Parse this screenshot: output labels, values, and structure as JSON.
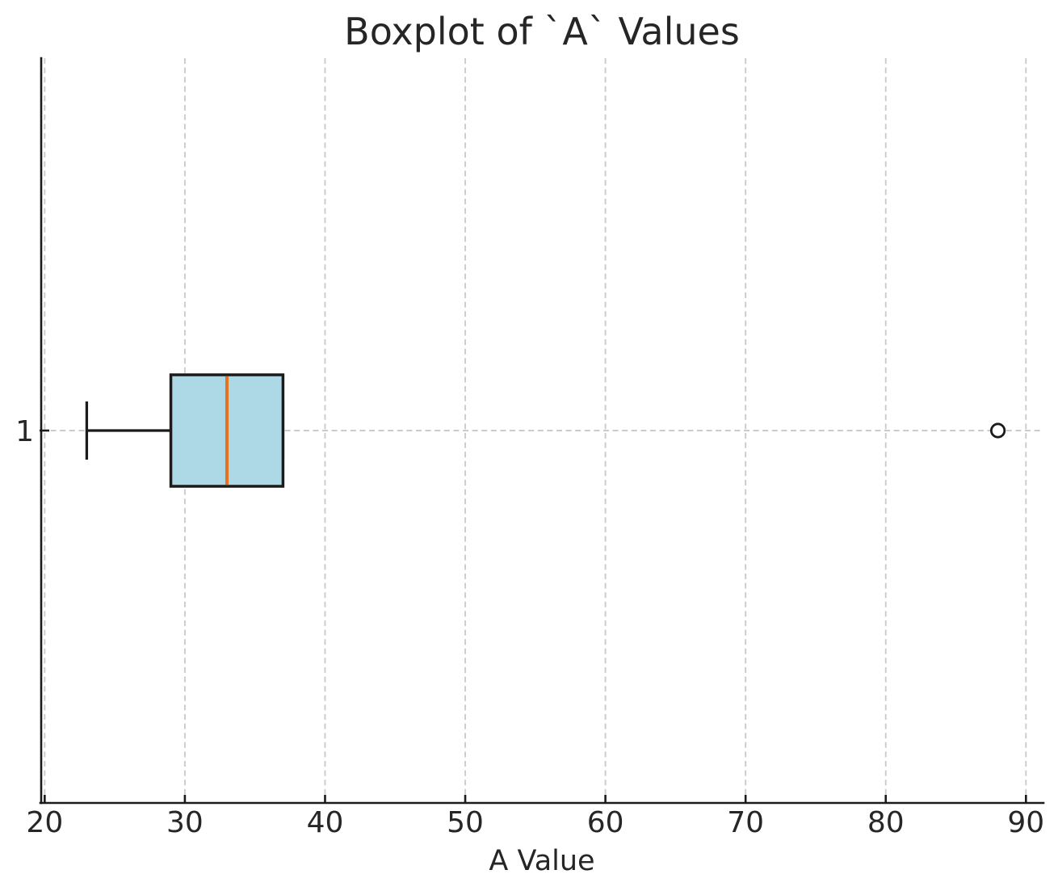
{
  "chart_data": {
    "type": "boxplot",
    "orientation": "horizontal",
    "title": "Boxplot of `A` Values",
    "xlabel": "A Value",
    "ylabel": "",
    "categories": [
      "1"
    ],
    "x_ticks": [
      20,
      30,
      40,
      50,
      60,
      70,
      80,
      90
    ],
    "xlim": [
      19.75,
      91.25
    ],
    "grid": true,
    "grid_style": "dashed",
    "tick_direction": "in",
    "series": [
      {
        "name": "A",
        "position_label": "1",
        "whisker_low": 23,
        "q1": 29,
        "median": 33,
        "q3": 37,
        "whisker_high": 37,
        "outliers": [
          88
        ]
      }
    ],
    "colors": {
      "background": "#ffffff",
      "box_fill": "#add8e6",
      "box_edge": "#1b1b1b",
      "median": "#e8721c",
      "whisker": "#1b1b1b",
      "outlier_edge": "#1b1b1b",
      "outlier_fill": "#ffffff",
      "grid": "#cbcbcb",
      "axis": "#1b1b1b",
      "text": "#262626"
    }
  }
}
